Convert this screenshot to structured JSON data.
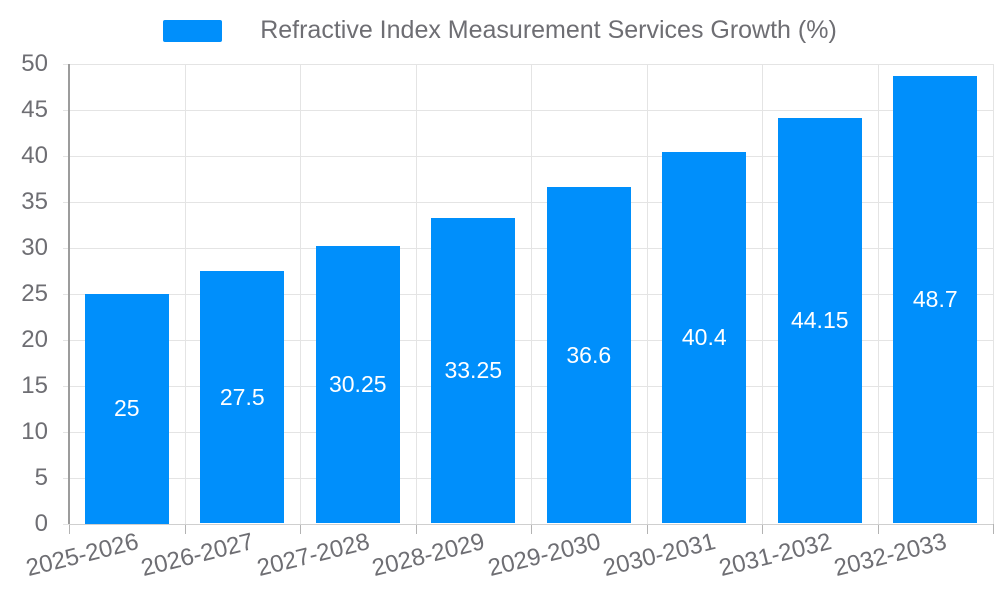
{
  "legend": {
    "label": "Refractive Index Measurement Services Growth (%)"
  },
  "chart_data": {
    "type": "bar",
    "title": "Refractive Index Measurement Services Growth (%)",
    "series_name": "Refractive Index Measurement Services Growth (%)",
    "categories": [
      "2025-2026",
      "2026-2027",
      "2027-2028",
      "2028-2029",
      "2029-2030",
      "2030-2031",
      "2031-2032",
      "2032-2033"
    ],
    "values": [
      25,
      27.5,
      30.25,
      33.25,
      36.6,
      40.4,
      44.15,
      48.7
    ],
    "value_labels": [
      "25",
      "27.5",
      "30.25",
      "33.25",
      "36.6",
      "40.4",
      "44.15",
      "48.7"
    ],
    "xlabel": "",
    "ylabel": "",
    "ylim": [
      0,
      50
    ],
    "yticks": [
      0,
      5,
      10,
      15,
      20,
      25,
      30,
      35,
      40,
      45,
      50
    ],
    "grid": true,
    "legend_position": "top",
    "colors": {
      "bar": "#008FFB",
      "grid": "#e4e4e4",
      "axis_line": "#9c9c9c",
      "tick_mark": "#b3b3b3",
      "label_text": "#6e6e73",
      "data_label_text": "#ffffff",
      "background": "#ffffff"
    }
  }
}
